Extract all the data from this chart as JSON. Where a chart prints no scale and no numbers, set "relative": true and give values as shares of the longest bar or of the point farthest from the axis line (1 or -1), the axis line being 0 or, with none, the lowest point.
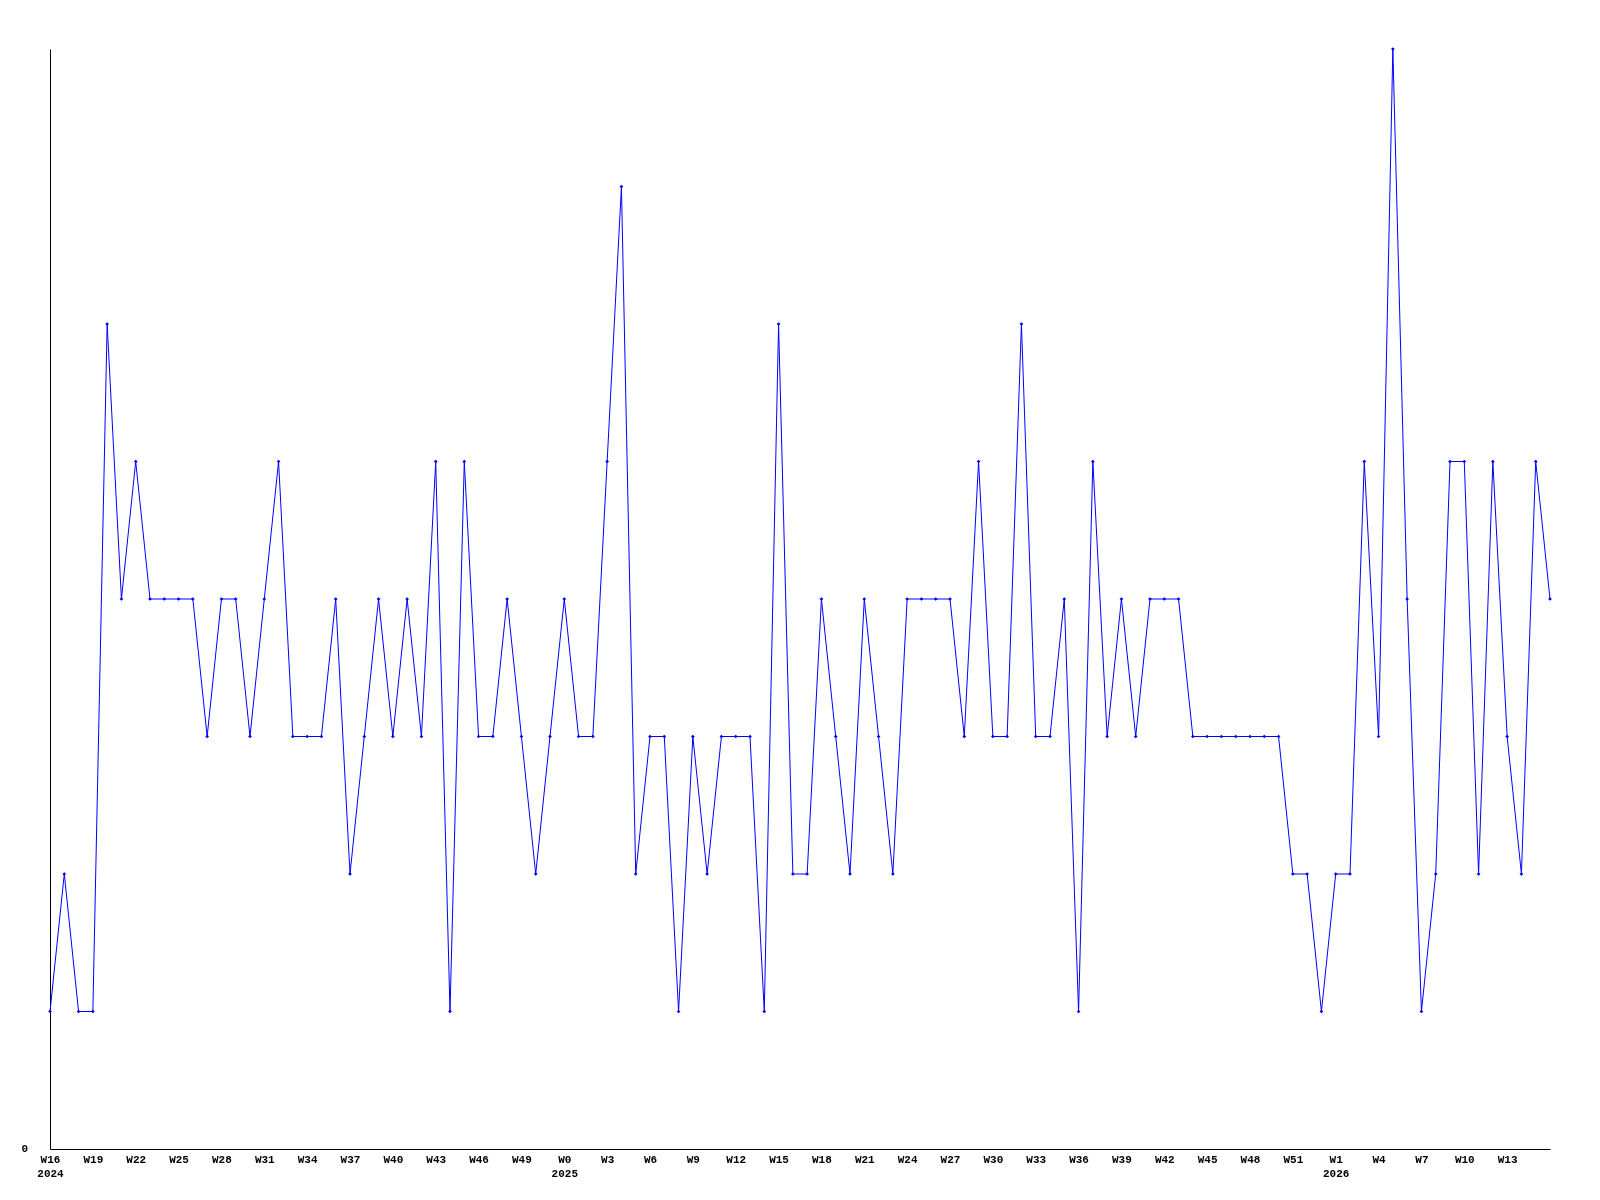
{
  "chart_data": {
    "type": "line",
    "relative": true,
    "marker": "diamond",
    "line_style": "solid",
    "annotations": [
      "0"
    ],
    "categories": [
      "W16\n2024",
      null,
      null,
      "W19",
      null,
      null,
      "W22",
      null,
      null,
      "W25",
      null,
      null,
      "W28",
      null,
      null,
      "W31",
      null,
      null,
      "W34",
      null,
      null,
      "W37",
      null,
      null,
      "W40",
      null,
      null,
      "W43",
      null,
      null,
      "W46",
      null,
      null,
      "W49",
      null,
      null,
      "W0\n2025",
      null,
      null,
      "W3",
      null,
      null,
      "W6",
      null,
      null,
      "W9",
      null,
      null,
      "W12",
      null,
      null,
      "W15",
      null,
      null,
      "W18",
      null,
      null,
      "W21",
      null,
      null,
      "W24",
      null,
      null,
      "W27",
      null,
      null,
      "W30",
      null,
      null,
      "W33",
      null,
      null,
      "W36",
      null,
      null,
      "W39",
      null,
      null,
      "W42",
      null,
      null,
      "W45",
      null,
      null,
      "W48",
      null,
      null,
      "W51",
      null,
      null,
      "W1\n2026",
      null,
      null,
      "W4",
      null,
      null,
      "W7",
      null,
      null,
      "W10",
      null,
      null,
      "W13",
      null,
      null,
      null
    ],
    "series": [
      {
        "color": "#0000ff",
        "values": [
          0.125,
          0.25,
          0.125,
          0.125,
          0.75,
          0.5,
          0.625,
          0.5,
          0.5,
          0.5,
          0.5,
          0.375,
          0.5,
          0.5,
          0.375,
          0.5,
          0.625,
          0.375,
          0.375,
          0.375,
          0.5,
          0.25,
          0.375,
          0.5,
          0.375,
          0.5,
          0.375,
          0.625,
          0.125,
          0.625,
          0.375,
          0.375,
          0.5,
          0.375,
          0.25,
          0.375,
          0.5,
          0.375,
          0.375,
          0.625,
          0.875,
          0.25,
          0.375,
          0.375,
          0.125,
          0.375,
          0.25,
          0.375,
          0.375,
          0.375,
          0.125,
          0.75,
          0.25,
          0.25,
          0.5,
          0.375,
          0.25,
          0.5,
          0.375,
          0.25,
          0.5,
          0.5,
          0.5,
          0.5,
          0.375,
          0.625,
          0.375,
          0.375,
          0.75,
          0.375,
          0.375,
          0.5,
          0.125,
          0.625,
          0.375,
          0.5,
          0.375,
          0.5,
          0.5,
          0.5,
          0.375,
          0.375,
          0.375,
          0.375,
          0.375,
          0.375,
          0.375,
          0.25,
          0.25,
          0.125,
          0.25,
          0.25,
          0.625,
          0.375,
          1,
          0.5,
          0.125,
          0.25,
          0.625,
          0.625,
          0.25,
          0.625,
          0.375,
          0.25,
          0.625,
          0.5
        ]
      }
    ]
  }
}
